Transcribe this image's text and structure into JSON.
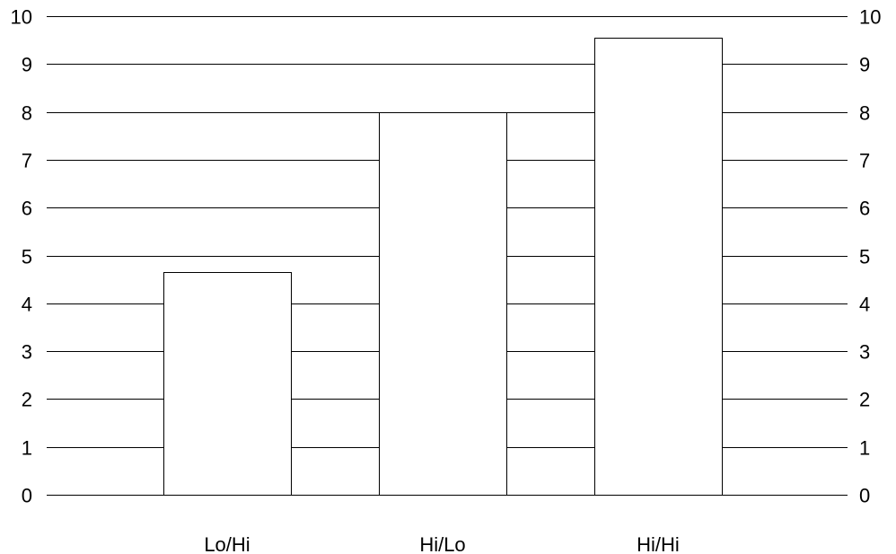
{
  "chart_data": {
    "type": "bar",
    "categories": [
      "Lo/Hi",
      "Hi/Lo",
      "Hi/Hi"
    ],
    "values": [
      4.65,
      8.0,
      9.55
    ],
    "ylim": [
      0,
      10
    ],
    "yticks": [
      0,
      1,
      2,
      3,
      4,
      5,
      6,
      7,
      8,
      9,
      10
    ],
    "y_axis_sides": "both",
    "grid": true,
    "colors": {
      "bar_fill": "#ffffff",
      "bar_stroke": "#000000",
      "grid": "#000000",
      "text": "#000000"
    }
  }
}
